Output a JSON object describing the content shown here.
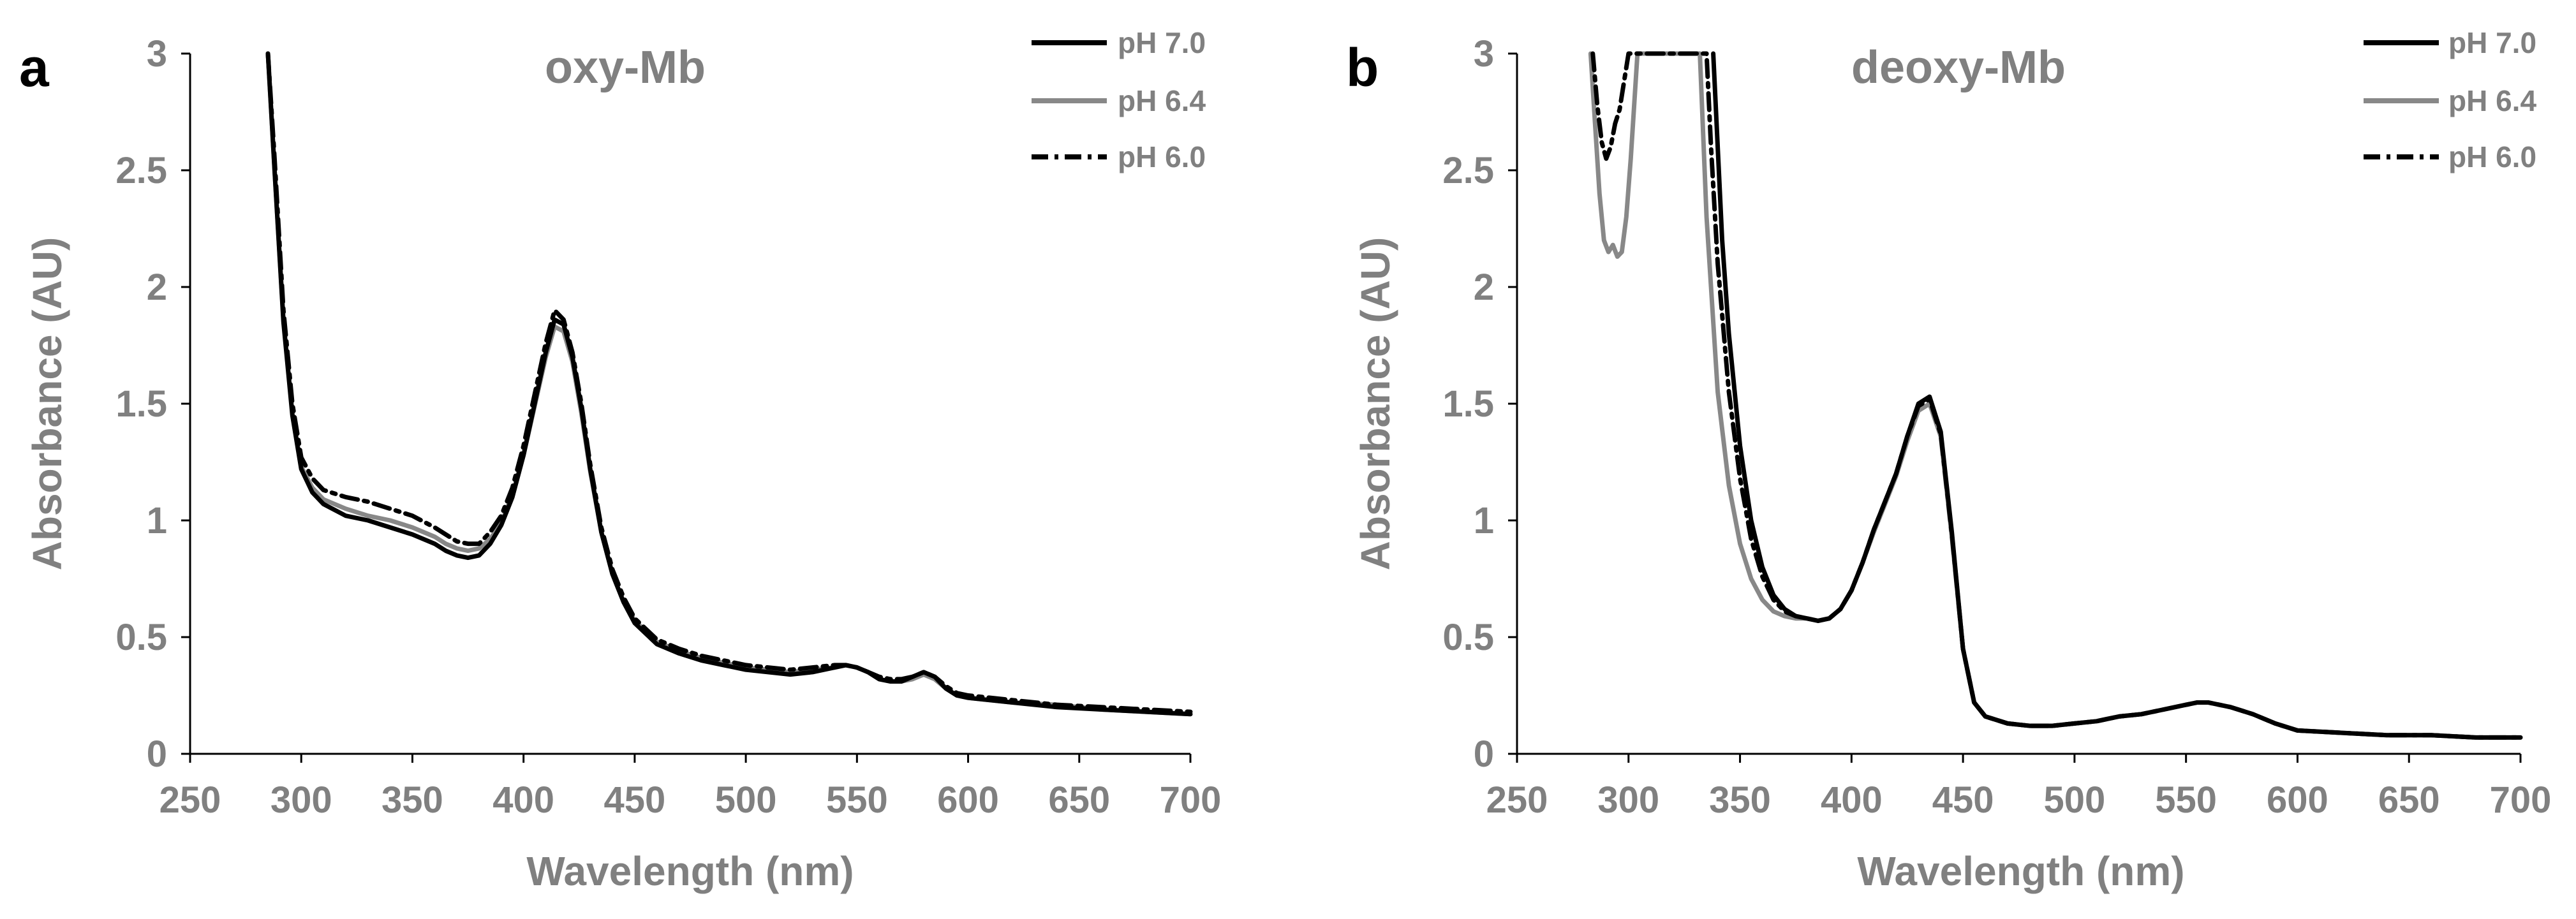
{
  "chart_data": [
    {
      "type": "line",
      "panel_label": "a",
      "title": "oxy-Mb",
      "xlabel": "Wavelength (nm)",
      "ylabel": "Absorbance (AU)",
      "xlim": [
        250,
        700
      ],
      "ylim": [
        0,
        3
      ],
      "xticks": [
        "250",
        "300",
        "350",
        "400",
        "450",
        "500",
        "550",
        "600",
        "650",
        "700"
      ],
      "yticks": [
        "0",
        "0.5",
        "1",
        "1.5",
        "2",
        "2.5",
        "3"
      ],
      "legend_position": "top-right",
      "series": [
        {
          "name": "pH 7.0",
          "color": "#000000",
          "style": "solid",
          "x": [
            285,
            288,
            292,
            296,
            300,
            305,
            310,
            320,
            330,
            340,
            350,
            360,
            365,
            370,
            375,
            380,
            385,
            390,
            395,
            400,
            405,
            410,
            414,
            418,
            422,
            426,
            430,
            435,
            440,
            445,
            450,
            460,
            470,
            480,
            490,
            500,
            510,
            520,
            530,
            540,
            545,
            550,
            555,
            560,
            565,
            570,
            575,
            580,
            585,
            590,
            595,
            600,
            620,
            640,
            660,
            680,
            700
          ],
          "y": [
            3.0,
            2.5,
            1.85,
            1.45,
            1.22,
            1.12,
            1.07,
            1.02,
            1.0,
            0.97,
            0.94,
            0.9,
            0.87,
            0.85,
            0.84,
            0.85,
            0.9,
            0.98,
            1.1,
            1.28,
            1.5,
            1.72,
            1.86,
            1.84,
            1.7,
            1.48,
            1.22,
            0.95,
            0.77,
            0.65,
            0.56,
            0.47,
            0.43,
            0.4,
            0.38,
            0.36,
            0.35,
            0.34,
            0.35,
            0.37,
            0.38,
            0.37,
            0.35,
            0.32,
            0.31,
            0.31,
            0.33,
            0.35,
            0.33,
            0.28,
            0.25,
            0.24,
            0.22,
            0.2,
            0.19,
            0.18,
            0.17
          ]
        },
        {
          "name": "pH 6.4",
          "color": "#888888",
          "style": "solid",
          "x": [
            285,
            288,
            292,
            296,
            300,
            305,
            310,
            320,
            330,
            340,
            350,
            360,
            365,
            370,
            375,
            380,
            385,
            390,
            395,
            400,
            405,
            410,
            414,
            418,
            422,
            426,
            430,
            435,
            440,
            445,
            450,
            460,
            470,
            480,
            490,
            500,
            510,
            520,
            530,
            540,
            545,
            550,
            555,
            560,
            565,
            570,
            575,
            580,
            585,
            590,
            595,
            600,
            620,
            640,
            660,
            680,
            700
          ],
          "y": [
            3.0,
            2.5,
            1.86,
            1.46,
            1.23,
            1.14,
            1.09,
            1.05,
            1.02,
            1.0,
            0.97,
            0.93,
            0.9,
            0.88,
            0.87,
            0.88,
            0.92,
            0.99,
            1.11,
            1.28,
            1.49,
            1.7,
            1.83,
            1.81,
            1.68,
            1.46,
            1.21,
            0.95,
            0.77,
            0.65,
            0.57,
            0.48,
            0.44,
            0.41,
            0.39,
            0.37,
            0.36,
            0.35,
            0.36,
            0.37,
            0.38,
            0.37,
            0.35,
            0.32,
            0.31,
            0.31,
            0.32,
            0.34,
            0.32,
            0.28,
            0.25,
            0.24,
            0.22,
            0.21,
            0.19,
            0.18,
            0.17
          ]
        },
        {
          "name": "pH 6.0",
          "color": "#000000",
          "style": "dashdot",
          "x": [
            285,
            288,
            292,
            296,
            300,
            305,
            310,
            320,
            330,
            340,
            350,
            360,
            365,
            370,
            375,
            380,
            385,
            390,
            395,
            400,
            405,
            410,
            414,
            418,
            422,
            426,
            430,
            435,
            440,
            445,
            450,
            460,
            470,
            480,
            490,
            500,
            510,
            520,
            530,
            540,
            545,
            550,
            555,
            560,
            565,
            570,
            575,
            580,
            585,
            590,
            595,
            600,
            620,
            640,
            660,
            680,
            700
          ],
          "y": [
            3.0,
            2.55,
            1.9,
            1.5,
            1.27,
            1.18,
            1.13,
            1.1,
            1.08,
            1.05,
            1.02,
            0.97,
            0.94,
            0.91,
            0.9,
            0.9,
            0.95,
            1.02,
            1.14,
            1.32,
            1.54,
            1.76,
            1.9,
            1.86,
            1.72,
            1.5,
            1.24,
            0.97,
            0.79,
            0.67,
            0.58,
            0.49,
            0.45,
            0.42,
            0.4,
            0.38,
            0.37,
            0.36,
            0.37,
            0.38,
            0.38,
            0.37,
            0.35,
            0.33,
            0.32,
            0.32,
            0.33,
            0.35,
            0.33,
            0.29,
            0.26,
            0.25,
            0.23,
            0.21,
            0.2,
            0.19,
            0.18
          ]
        }
      ]
    },
    {
      "type": "line",
      "panel_label": "b",
      "title": "deoxy-Mb",
      "xlabel": "Wavelength (nm)",
      "ylabel": "Absorbance (AU)",
      "xlim": [
        250,
        700
      ],
      "ylim": [
        0,
        3
      ],
      "xticks": [
        "250",
        "300",
        "350",
        "400",
        "450",
        "500",
        "550",
        "600",
        "650",
        "700"
      ],
      "yticks": [
        "0",
        "0.5",
        "1",
        "1.5",
        "2",
        "2.5",
        "3"
      ],
      "legend_position": "top-right",
      "series": [
        {
          "name": "pH 7.0",
          "color": "#000000",
          "style": "solid",
          "x": [
            338,
            340,
            342,
            345,
            350,
            355,
            360,
            365,
            370,
            375,
            380,
            385,
            390,
            395,
            400,
            405,
            410,
            415,
            420,
            425,
            430,
            435,
            440,
            445,
            450,
            455,
            460,
            470,
            480,
            490,
            500,
            510,
            520,
            530,
            540,
            550,
            555,
            560,
            570,
            580,
            590,
            600,
            620,
            640,
            660,
            680,
            700
          ],
          "y": [
            3.0,
            2.6,
            2.2,
            1.8,
            1.32,
            1.0,
            0.8,
            0.68,
            0.62,
            0.59,
            0.58,
            0.57,
            0.58,
            0.62,
            0.7,
            0.82,
            0.96,
            1.08,
            1.2,
            1.36,
            1.5,
            1.53,
            1.38,
            0.95,
            0.45,
            0.22,
            0.16,
            0.13,
            0.12,
            0.12,
            0.13,
            0.14,
            0.16,
            0.17,
            0.19,
            0.21,
            0.22,
            0.22,
            0.2,
            0.17,
            0.13,
            0.1,
            0.09,
            0.08,
            0.08,
            0.07,
            0.07
          ]
        },
        {
          "name": "pH 6.4",
          "color": "#888888",
          "style": "solid",
          "x": [
            283,
            285,
            287,
            289,
            291,
            293,
            295,
            297,
            299,
            301,
            303,
            304,
            332,
            335,
            340,
            345,
            350,
            355,
            360,
            365,
            370,
            375,
            380,
            385,
            390,
            395,
            400,
            405,
            410,
            415,
            420,
            425,
            430,
            435,
            440,
            445,
            450,
            455,
            460,
            470,
            480,
            490,
            500,
            510,
            520,
            530,
            540,
            550,
            555,
            560,
            570,
            580,
            590,
            600,
            620,
            640,
            660,
            680,
            700
          ],
          "y": [
            3.0,
            2.7,
            2.4,
            2.2,
            2.15,
            2.18,
            2.13,
            2.15,
            2.3,
            2.55,
            2.85,
            3.0,
            3.0,
            2.3,
            1.55,
            1.15,
            0.9,
            0.75,
            0.66,
            0.61,
            0.59,
            0.58,
            0.58,
            0.57,
            0.58,
            0.62,
            0.7,
            0.82,
            0.95,
            1.07,
            1.19,
            1.34,
            1.47,
            1.5,
            1.36,
            0.93,
            0.45,
            0.22,
            0.16,
            0.13,
            0.12,
            0.12,
            0.13,
            0.14,
            0.16,
            0.17,
            0.19,
            0.21,
            0.22,
            0.22,
            0.2,
            0.17,
            0.13,
            0.1,
            0.09,
            0.08,
            0.08,
            0.07,
            0.07
          ]
        },
        {
          "name": "pH 6.0",
          "color": "#000000",
          "style": "dashdot",
          "x": [
            284,
            286,
            288,
            290,
            292,
            294,
            296,
            298,
            300,
            335,
            337,
            340,
            345,
            350,
            355,
            360,
            365,
            370,
            375,
            380,
            385,
            390,
            395,
            400,
            405,
            410,
            415,
            420,
            425,
            430,
            435,
            440,
            445,
            450,
            455,
            460,
            470,
            480,
            490,
            500,
            510,
            520,
            530,
            540,
            550,
            555,
            560,
            570,
            580,
            590,
            600,
            620,
            640,
            660,
            680,
            700
          ],
          "y": [
            3.0,
            2.78,
            2.62,
            2.55,
            2.6,
            2.7,
            2.76,
            2.88,
            3.0,
            3.0,
            2.6,
            2.1,
            1.55,
            1.18,
            0.92,
            0.76,
            0.66,
            0.61,
            0.59,
            0.58,
            0.57,
            0.58,
            0.62,
            0.7,
            0.82,
            0.96,
            1.08,
            1.2,
            1.36,
            1.49,
            1.52,
            1.37,
            0.94,
            0.45,
            0.22,
            0.16,
            0.13,
            0.12,
            0.12,
            0.13,
            0.14,
            0.16,
            0.17,
            0.19,
            0.21,
            0.22,
            0.22,
            0.2,
            0.17,
            0.13,
            0.1,
            0.09,
            0.08,
            0.08,
            0.07,
            0.07
          ]
        }
      ]
    }
  ]
}
